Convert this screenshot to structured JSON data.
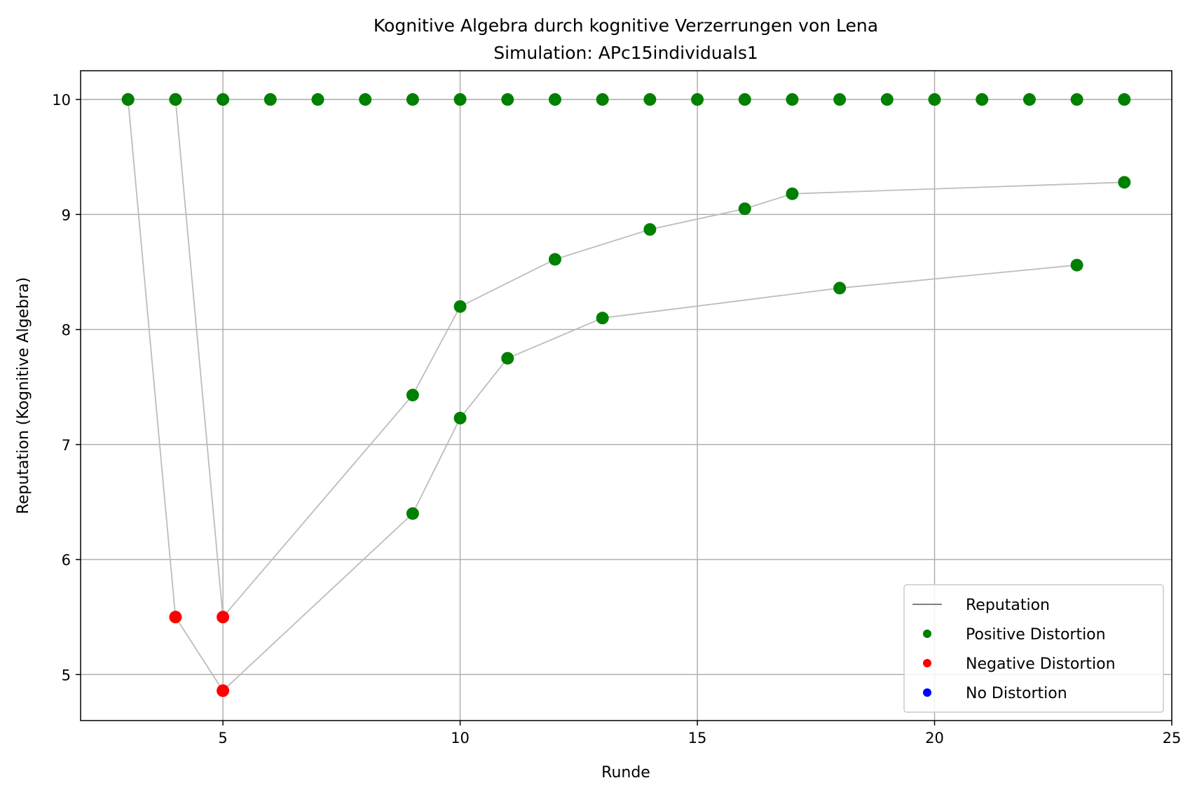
{
  "chart_data": {
    "type": "line",
    "title": "Kognitive Algebra durch kognitive Verzerrungen von Lena",
    "subtitle": "Simulation: APc15individuals1",
    "xlabel": "Runde",
    "ylabel": "Reputation (Kognitive Algebra)",
    "xlim": [
      2,
      25
    ],
    "ylim": [
      4.6,
      10.25
    ],
    "xticks": [
      5,
      10,
      15,
      20,
      25
    ],
    "yticks": [
      5,
      6,
      7,
      8,
      9,
      10
    ],
    "grid": true,
    "legend_position": "lower-right",
    "legend": [
      {
        "label": "Reputation",
        "kind": "line",
        "color": "#808080"
      },
      {
        "label": "Positive Distortion",
        "kind": "marker",
        "color": "#008000"
      },
      {
        "label": "Negative Distortion",
        "kind": "marker",
        "color": "#ff0000"
      },
      {
        "label": "No Distortion",
        "kind": "marker",
        "color": "#0000ff"
      }
    ],
    "colors": {
      "positive": "#008000",
      "negative": "#ff0000",
      "none": "#0000ff",
      "line": "#bdbdbd"
    },
    "reference_line": {
      "y": 10
    },
    "trajectories": [
      {
        "points": [
          {
            "x": 3,
            "y": 10,
            "d": "positive"
          },
          {
            "x": 4,
            "y": 5.5,
            "d": "negative"
          },
          {
            "x": 5,
            "y": 4.86,
            "d": "negative"
          },
          {
            "x": 9,
            "y": 6.4,
            "d": "positive"
          },
          {
            "x": 10,
            "y": 7.23,
            "d": "positive"
          },
          {
            "x": 11,
            "y": 7.75,
            "d": "positive"
          },
          {
            "x": 13,
            "y": 8.1,
            "d": "positive"
          },
          {
            "x": 18,
            "y": 8.36,
            "d": "positive"
          },
          {
            "x": 23,
            "y": 8.56,
            "d": "positive"
          }
        ]
      },
      {
        "points": [
          {
            "x": 4,
            "y": 10,
            "d": "positive"
          },
          {
            "x": 5,
            "y": 5.5,
            "d": "negative"
          },
          {
            "x": 9,
            "y": 7.43,
            "d": "positive"
          },
          {
            "x": 10,
            "y": 8.2,
            "d": "positive"
          },
          {
            "x": 12,
            "y": 8.61,
            "d": "positive"
          },
          {
            "x": 14,
            "y": 8.87,
            "d": "positive"
          },
          {
            "x": 16,
            "y": 9.05,
            "d": "positive"
          },
          {
            "x": 17,
            "y": 9.18,
            "d": "positive"
          },
          {
            "x": 24,
            "y": 9.28,
            "d": "positive"
          }
        ]
      }
    ],
    "constant_points": {
      "y": 10,
      "x": [
        3,
        4,
        5,
        6,
        7,
        8,
        9,
        10,
        11,
        12,
        13,
        14,
        15,
        16,
        17,
        18,
        19,
        20,
        21,
        22,
        23,
        24
      ],
      "d": "positive"
    }
  }
}
